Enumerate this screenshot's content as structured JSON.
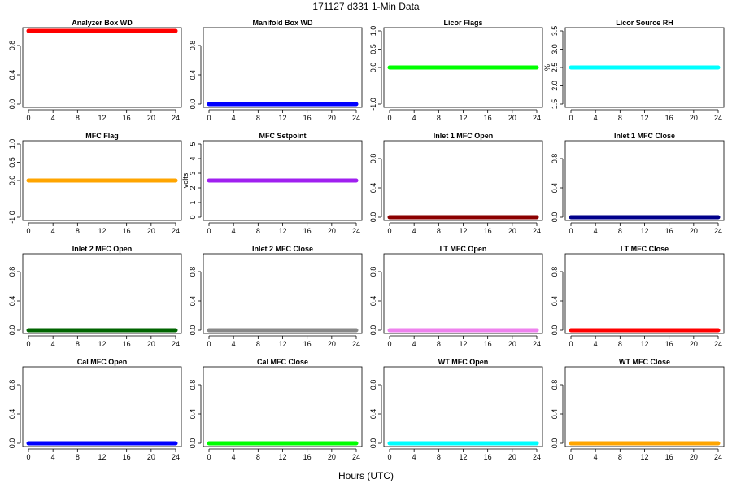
{
  "figure": {
    "title": "171127   d331   1-Min Data",
    "xlabel": "Hours (UTC)"
  },
  "chart_data": [
    {
      "type": "line",
      "title": "Analyzer Box WD",
      "ylabel": "",
      "xlim": [
        0,
        24
      ],
      "ylim": [
        0,
        1
      ],
      "xticks": [
        "0",
        "4",
        "8",
        "12",
        "16",
        "20",
        "24"
      ],
      "yticks": [
        {
          "v": 0,
          "t": "0.0"
        },
        {
          "v": 0.4,
          "t": "0.4"
        },
        {
          "v": 0.8,
          "t": "0.8"
        }
      ],
      "series": [
        {
          "name": "Analyzer Box WD",
          "color": "#ff0000",
          "x": [
            0,
            24
          ],
          "y": [
            1,
            1
          ]
        }
      ]
    },
    {
      "type": "line",
      "title": "Manifold Box WD",
      "ylabel": "",
      "xlim": [
        0,
        24
      ],
      "ylim": [
        0,
        1
      ],
      "xticks": [
        "0",
        "4",
        "8",
        "12",
        "16",
        "20",
        "24"
      ],
      "yticks": [
        {
          "v": 0,
          "t": "0.0"
        },
        {
          "v": 0.4,
          "t": "0.4"
        },
        {
          "v": 0.8,
          "t": "0.8"
        }
      ],
      "series": [
        {
          "name": "Manifold Box WD",
          "color": "#0000ff",
          "x": [
            0,
            24
          ],
          "y": [
            0,
            0
          ]
        }
      ]
    },
    {
      "type": "line",
      "title": "Licor Flags",
      "ylabel": "",
      "xlim": [
        0,
        24
      ],
      "ylim": [
        -1,
        1
      ],
      "xticks": [
        "0",
        "4",
        "8",
        "12",
        "16",
        "20",
        "24"
      ],
      "yticks": [
        {
          "v": -1,
          "t": "-1.0"
        },
        {
          "v": 0,
          "t": "0.0"
        },
        {
          "v": 0.5,
          "t": "0.5"
        },
        {
          "v": 1,
          "t": "1.0"
        }
      ],
      "series": [
        {
          "name": "Licor Flags",
          "color": "#00ff00",
          "x": [
            0,
            24
          ],
          "y": [
            0,
            0
          ]
        }
      ]
    },
    {
      "type": "line",
      "title": "Licor Source RH",
      "ylabel": "%",
      "xlim": [
        0,
        24
      ],
      "ylim": [
        1.5,
        3.5
      ],
      "xticks": [
        "0",
        "4",
        "8",
        "12",
        "16",
        "20",
        "24"
      ],
      "yticks": [
        {
          "v": 1.5,
          "t": "1.5"
        },
        {
          "v": 2.0,
          "t": "2.0"
        },
        {
          "v": 2.5,
          "t": "2.5"
        },
        {
          "v": 3.0,
          "t": "3.0"
        },
        {
          "v": 3.5,
          "t": "3.5"
        }
      ],
      "series": [
        {
          "name": "Licor Source RH",
          "color": "#00ffff",
          "x": [
            0,
            24
          ],
          "y": [
            2.5,
            2.5
          ]
        }
      ]
    },
    {
      "type": "line",
      "title": "MFC Flag",
      "ylabel": "",
      "xlim": [
        0,
        24
      ],
      "ylim": [
        -1,
        1
      ],
      "xticks": [
        "0",
        "4",
        "8",
        "12",
        "16",
        "20",
        "24"
      ],
      "yticks": [
        {
          "v": -1,
          "t": "-1.0"
        },
        {
          "v": 0,
          "t": "0.0"
        },
        {
          "v": 0.5,
          "t": "0.5"
        },
        {
          "v": 1,
          "t": "1.0"
        }
      ],
      "series": [
        {
          "name": "MFC Flag",
          "color": "#ffa500",
          "x": [
            0,
            24
          ],
          "y": [
            0,
            0
          ]
        }
      ]
    },
    {
      "type": "line",
      "title": "MFC Setpoint",
      "ylabel": "volts",
      "xlim": [
        0,
        24
      ],
      "ylim": [
        0,
        5
      ],
      "xticks": [
        "0",
        "4",
        "8",
        "12",
        "16",
        "20",
        "24"
      ],
      "yticks": [
        {
          "v": 0,
          "t": "0"
        },
        {
          "v": 1,
          "t": "1"
        },
        {
          "v": 2,
          "t": "2"
        },
        {
          "v": 3,
          "t": "3"
        },
        {
          "v": 4,
          "t": "4"
        },
        {
          "v": 5,
          "t": "5"
        }
      ],
      "series": [
        {
          "name": "MFC Setpoint",
          "color": "#a020f0",
          "x": [
            0,
            24
          ],
          "y": [
            2.5,
            2.5
          ]
        }
      ]
    },
    {
      "type": "line",
      "title": "Inlet 1 MFC Open",
      "ylabel": "",
      "xlim": [
        0,
        24
      ],
      "ylim": [
        0,
        1
      ],
      "xticks": [
        "0",
        "4",
        "8",
        "12",
        "16",
        "20",
        "24"
      ],
      "yticks": [
        {
          "v": 0,
          "t": "0.0"
        },
        {
          "v": 0.4,
          "t": "0.4"
        },
        {
          "v": 0.8,
          "t": "0.8"
        }
      ],
      "series": [
        {
          "name": "Inlet 1 MFC Open",
          "color": "#8b0000",
          "x": [
            0,
            24
          ],
          "y": [
            0,
            0
          ]
        }
      ]
    },
    {
      "type": "line",
      "title": "Inlet 1 MFC Close",
      "ylabel": "",
      "xlim": [
        0,
        24
      ],
      "ylim": [
        0,
        1
      ],
      "xticks": [
        "0",
        "4",
        "8",
        "12",
        "16",
        "20",
        "24"
      ],
      "yticks": [
        {
          "v": 0,
          "t": "0.0"
        },
        {
          "v": 0.4,
          "t": "0.4"
        },
        {
          "v": 0.8,
          "t": "0.8"
        }
      ],
      "series": [
        {
          "name": "Inlet 1 MFC Close",
          "color": "#00008b",
          "x": [
            0,
            24
          ],
          "y": [
            0,
            0
          ]
        }
      ]
    },
    {
      "type": "line",
      "title": "Inlet 2 MFC Open",
      "ylabel": "",
      "xlim": [
        0,
        24
      ],
      "ylim": [
        0,
        1
      ],
      "xticks": [
        "0",
        "4",
        "8",
        "12",
        "16",
        "20",
        "24"
      ],
      "yticks": [
        {
          "v": 0,
          "t": "0.0"
        },
        {
          "v": 0.4,
          "t": "0.4"
        },
        {
          "v": 0.8,
          "t": "0.8"
        }
      ],
      "series": [
        {
          "name": "Inlet 2 MFC Open",
          "color": "#006400",
          "x": [
            0,
            24
          ],
          "y": [
            0,
            0
          ]
        }
      ]
    },
    {
      "type": "line",
      "title": "Inlet 2 MFC Close",
      "ylabel": "",
      "xlim": [
        0,
        24
      ],
      "ylim": [
        0,
        1
      ],
      "xticks": [
        "0",
        "4",
        "8",
        "12",
        "16",
        "20",
        "24"
      ],
      "yticks": [
        {
          "v": 0,
          "t": "0.0"
        },
        {
          "v": 0.4,
          "t": "0.4"
        },
        {
          "v": 0.8,
          "t": "0.8"
        }
      ],
      "series": [
        {
          "name": "Inlet 2 MFC Close",
          "color": "#888888",
          "x": [
            0,
            24
          ],
          "y": [
            0,
            0
          ]
        }
      ]
    },
    {
      "type": "line",
      "title": "LT MFC Open",
      "ylabel": "",
      "xlim": [
        0,
        24
      ],
      "ylim": [
        0,
        1
      ],
      "xticks": [
        "0",
        "4",
        "8",
        "12",
        "16",
        "20",
        "24"
      ],
      "yticks": [
        {
          "v": 0,
          "t": "0.0"
        },
        {
          "v": 0.4,
          "t": "0.4"
        },
        {
          "v": 0.8,
          "t": "0.8"
        }
      ],
      "series": [
        {
          "name": "LT MFC Open",
          "color": "#ee82ee",
          "x": [
            0,
            24
          ],
          "y": [
            0,
            0
          ]
        }
      ]
    },
    {
      "type": "line",
      "title": "LT MFC Close",
      "ylabel": "",
      "xlim": [
        0,
        24
      ],
      "ylim": [
        0,
        1
      ],
      "xticks": [
        "0",
        "4",
        "8",
        "12",
        "16",
        "20",
        "24"
      ],
      "yticks": [
        {
          "v": 0,
          "t": "0.0"
        },
        {
          "v": 0.4,
          "t": "0.4"
        },
        {
          "v": 0.8,
          "t": "0.8"
        }
      ],
      "series": [
        {
          "name": "LT MFC Close",
          "color": "#ff0000",
          "x": [
            0,
            24
          ],
          "y": [
            0,
            0
          ]
        }
      ]
    },
    {
      "type": "line",
      "title": "Cal MFC Open",
      "ylabel": "",
      "xlim": [
        0,
        24
      ],
      "ylim": [
        0,
        1
      ],
      "xticks": [
        "0",
        "4",
        "8",
        "12",
        "16",
        "20",
        "24"
      ],
      "yticks": [
        {
          "v": 0,
          "t": "0.0"
        },
        {
          "v": 0.4,
          "t": "0.4"
        },
        {
          "v": 0.8,
          "t": "0.8"
        }
      ],
      "series": [
        {
          "name": "Cal MFC Open",
          "color": "#0000ff",
          "x": [
            0,
            24
          ],
          "y": [
            0,
            0
          ]
        }
      ]
    },
    {
      "type": "line",
      "title": "Cal MFC Close",
      "ylabel": "",
      "xlim": [
        0,
        24
      ],
      "ylim": [
        0,
        1
      ],
      "xticks": [
        "0",
        "4",
        "8",
        "12",
        "16",
        "20",
        "24"
      ],
      "yticks": [
        {
          "v": 0,
          "t": "0.0"
        },
        {
          "v": 0.4,
          "t": "0.4"
        },
        {
          "v": 0.8,
          "t": "0.8"
        }
      ],
      "series": [
        {
          "name": "Cal MFC Close",
          "color": "#00ff00",
          "x": [
            0,
            24
          ],
          "y": [
            0,
            0
          ]
        }
      ]
    },
    {
      "type": "line",
      "title": "WT MFC Open",
      "ylabel": "",
      "xlim": [
        0,
        24
      ],
      "ylim": [
        0,
        1
      ],
      "xticks": [
        "0",
        "4",
        "8",
        "12",
        "16",
        "20",
        "24"
      ],
      "yticks": [
        {
          "v": 0,
          "t": "0.0"
        },
        {
          "v": 0.4,
          "t": "0.4"
        },
        {
          "v": 0.8,
          "t": "0.8"
        }
      ],
      "series": [
        {
          "name": "WT MFC Open",
          "color": "#00ffff",
          "x": [
            0,
            24
          ],
          "y": [
            0,
            0
          ]
        }
      ]
    },
    {
      "type": "line",
      "title": "WT MFC Close",
      "ylabel": "",
      "xlim": [
        0,
        24
      ],
      "ylim": [
        0,
        1
      ],
      "xticks": [
        "0",
        "4",
        "8",
        "12",
        "16",
        "20",
        "24"
      ],
      "yticks": [
        {
          "v": 0,
          "t": "0.0"
        },
        {
          "v": 0.4,
          "t": "0.4"
        },
        {
          "v": 0.8,
          "t": "0.8"
        }
      ],
      "series": [
        {
          "name": "WT MFC Close",
          "color": "#ffa500",
          "x": [
            0,
            24
          ],
          "y": [
            0,
            0
          ]
        }
      ]
    }
  ]
}
